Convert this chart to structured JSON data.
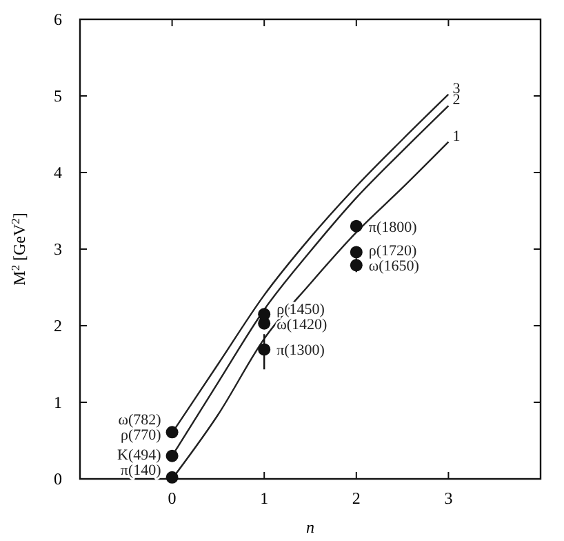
{
  "chart_data": {
    "type": "line",
    "xlabel": "n",
    "ylabel": "M$^{2}$ [GeV$^{2}$]",
    "xlim": [
      -1,
      4
    ],
    "xticks": [
      0,
      1,
      2,
      3
    ],
    "ylim": [
      0,
      6
    ],
    "yticks": [
      0,
      1,
      2,
      3,
      4,
      5,
      6
    ],
    "grid": false,
    "marker": "none",
    "line_style": "solid",
    "series": [
      {
        "name": "1",
        "color": "#222222",
        "x": [
          0,
          0.5,
          1,
          1.5,
          2,
          2.5,
          3
        ],
        "values": [
          0,
          0.84,
          1.83,
          2.55,
          3.22,
          3.8,
          4.4
        ]
      },
      {
        "name": "2",
        "color": "#222222",
        "x": [
          0,
          0.5,
          1,
          1.5,
          2,
          2.5,
          3
        ],
        "values": [
          0.3,
          1.26,
          2.21,
          2.97,
          3.67,
          4.28,
          4.87
        ]
      },
      {
        "name": "3",
        "color": "#222222",
        "x": [
          0,
          0.5,
          1,
          1.5,
          2,
          2.5,
          3
        ],
        "values": [
          0.6,
          1.5,
          2.4,
          3.15,
          3.82,
          4.43,
          5.02
        ]
      },
      {
        "type": "scatter",
        "color": "#111111",
        "marker": "circle",
        "x": [
          0,
          0,
          0,
          1,
          1,
          1,
          2,
          2,
          2
        ],
        "values": [
          0.02,
          0.3,
          0.61,
          1.69,
          2.03,
          2.15,
          2.79,
          2.96,
          3.3
        ],
        "errors": [
          null,
          null,
          null,
          [
            1.43,
            1.89
          ],
          null,
          null,
          [
            2.7,
            2.88
          ],
          null,
          null
        ]
      }
    ],
    "annotations": [
      {
        "text": "π(140)",
        "x": 0,
        "y": 0.02
      },
      {
        "text": "K(494)",
        "x": 0,
        "y": 0.3
      },
      {
        "text": "ρ(770)",
        "x": 0,
        "y": 0.59
      },
      {
        "text": "ω(782)",
        "x": 0,
        "y": 0.61
      },
      {
        "text": "π(1300)",
        "x": 1,
        "y": 1.69
      },
      {
        "text": "ω(1420)",
        "x": 1,
        "y": 2.03
      },
      {
        "text": "ρ(1450)",
        "x": 1,
        "y": 2.15
      },
      {
        "text": "ω(1650)",
        "x": 2,
        "y": 2.79
      },
      {
        "text": "ρ(1720)",
        "x": 2,
        "y": 2.96
      },
      {
        "text": "π(1800)",
        "x": 2,
        "y": 3.3
      }
    ]
  }
}
